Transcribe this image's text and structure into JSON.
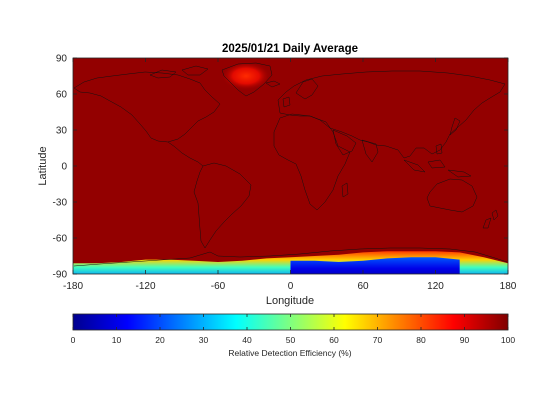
{
  "chart_data": {
    "type": "heatmap",
    "title": "2025/01/21 Daily Average",
    "xlabel": "Longitude",
    "ylabel": "Latitude",
    "xlim": [
      -180,
      180
    ],
    "ylim": [
      -90,
      90
    ],
    "xticks": [
      -180,
      -120,
      -60,
      0,
      60,
      120,
      180
    ],
    "yticks": [
      90,
      60,
      30,
      0,
      -30,
      -60,
      -90
    ],
    "colorbar": {
      "label": "Relative Detection Efficiency (%)",
      "range": [
        0,
        100
      ],
      "ticks": [
        0,
        10,
        20,
        30,
        40,
        50,
        60,
        70,
        80,
        90,
        100
      ],
      "colormap": "jet",
      "orientation": "horizontal"
    },
    "background_value": 97,
    "greenland_peak_value": 88,
    "antarctic_margin_latitude": {
      "lon": [
        -180,
        -160,
        -140,
        -120,
        -100,
        -80,
        -60,
        -40,
        -20,
        0,
        20,
        40,
        60,
        80,
        100,
        120,
        140,
        160,
        180
      ],
      "lat": [
        -81,
        -81,
        -80,
        -78,
        -78,
        -79,
        -80,
        -79,
        -77,
        -76,
        -75,
        -74,
        -72,
        -71,
        -71,
        -71,
        -72,
        -76,
        -81
      ]
    },
    "antarctic_low_core": {
      "lon": [
        0,
        20,
        40,
        60,
        80,
        100,
        120,
        140
      ],
      "lat": [
        -79,
        -79,
        -80,
        -79,
        -77,
        -76,
        -76,
        -78
      ],
      "min_value": 5
    },
    "grid": false
  }
}
